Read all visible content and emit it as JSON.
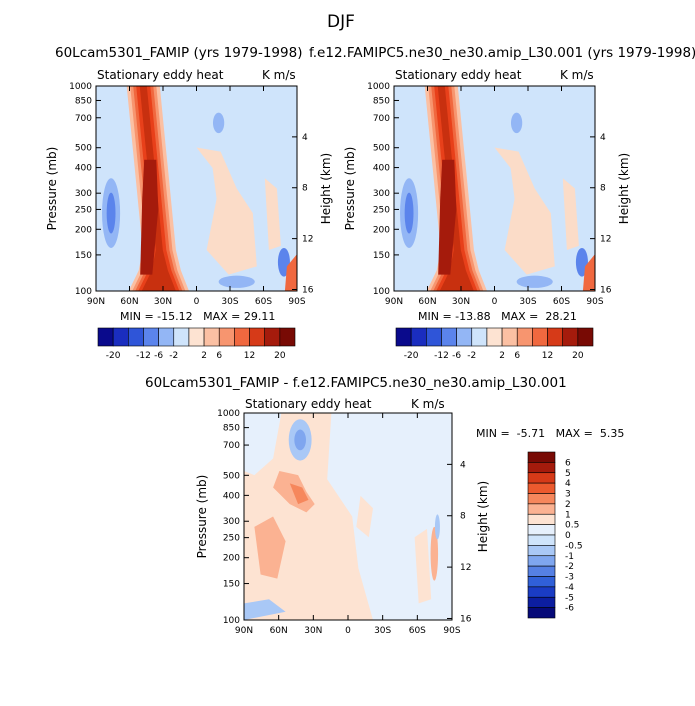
{
  "figure_title": "DJF",
  "colors": {
    "ocean_blue_bg": "#cfe4fb",
    "red_core": "#e8401a",
    "light_warm": "#fbdcc8"
  },
  "chart_data": [
    {
      "type": "heatmap",
      "title": "60Lcam5301_FAMIP (yrs 1979-1998)",
      "left_subtitle": "Stationary eddy heat",
      "right_subtitle": "K m/s",
      "ylabel": "Pressure (mb)",
      "right_ylabel": "Height (km)",
      "x_ticks": [
        "90N",
        "60N",
        "30N",
        "0",
        "30S",
        "60S",
        "90S"
      ],
      "y_ticks": [
        "100",
        "150",
        "200",
        "250",
        "300",
        "400",
        "500",
        "700",
        "850",
        "1000"
      ],
      "right_ticks": [
        "16",
        "12",
        "8",
        "4"
      ],
      "stats": "MIN = -15.12   MAX = 29.11",
      "stats_min": -15.12,
      "stats_max": 29.11,
      "colorbar_labels": [
        "-20",
        "-12",
        "-6",
        "-2",
        "2",
        "6",
        "12",
        "20"
      ]
    },
    {
      "type": "heatmap",
      "title": "f.e12.FAMIPC5.ne30_ne30.amip_L30.001 (yrs 1979-1998)",
      "left_subtitle": "Stationary eddy heat",
      "right_subtitle": "K m/s",
      "ylabel": "Pressure (mb)",
      "right_ylabel": "Height (km)",
      "x_ticks": [
        "90N",
        "60N",
        "30N",
        "0",
        "30S",
        "60S",
        "90S"
      ],
      "y_ticks": [
        "100",
        "150",
        "200",
        "250",
        "300",
        "400",
        "500",
        "700",
        "850",
        "1000"
      ],
      "right_ticks": [
        "16",
        "12",
        "8",
        "4"
      ],
      "stats": "MIN = -13.88   MAX =  28.21",
      "stats_min": -13.88,
      "stats_max": 28.21,
      "colorbar_labels": [
        "-20",
        "-12",
        "-6",
        "-2",
        "2",
        "6",
        "12",
        "20"
      ]
    },
    {
      "type": "heatmap",
      "title": "60Lcam5301_FAMIP - f.e12.FAMIPC5.ne30_ne30.amip_L30.001",
      "left_subtitle": "Stationary eddy heat",
      "right_subtitle": "K m/s",
      "ylabel": "Pressure (mb)",
      "right_ylabel": "Height (km)",
      "x_ticks": [
        "90N",
        "60N",
        "30N",
        "0",
        "30S",
        "60S",
        "90S"
      ],
      "y_ticks": [
        "100",
        "150",
        "200",
        "250",
        "300",
        "400",
        "500",
        "700",
        "850",
        "1000"
      ],
      "right_ticks": [
        "16",
        "12",
        "8",
        "4"
      ],
      "stats": "MIN =  -5.71   MAX =  5.35",
      "stats_min": -5.71,
      "stats_max": 5.35,
      "colorbar_labels": [
        "6",
        "5",
        "4",
        "3",
        "2",
        "1",
        "0.5",
        "0",
        "-0.5",
        "-1",
        "-2",
        "-3",
        "-4",
        "-5",
        "-6"
      ]
    }
  ],
  "top_palette": [
    "#0a0a8c",
    "#1a2dbf",
    "#2f55d8",
    "#5b84ec",
    "#93b6f5",
    "#cfe4fb",
    "#fde3d2",
    "#fbc0a3",
    "#f7956f",
    "#f0683f",
    "#d63a18",
    "#a51b0c",
    "#780a04"
  ],
  "diff_palette": [
    "#780a04",
    "#a51b0c",
    "#d63a18",
    "#ec5a2e",
    "#f6875c",
    "#fbb292",
    "#fde3d2",
    "#e6f0fc",
    "#cfe4fb",
    "#a9c8f6",
    "#7fa6ef",
    "#5580e4",
    "#3060d8",
    "#1a3cc4",
    "#0c1ea0",
    "#060a78"
  ]
}
